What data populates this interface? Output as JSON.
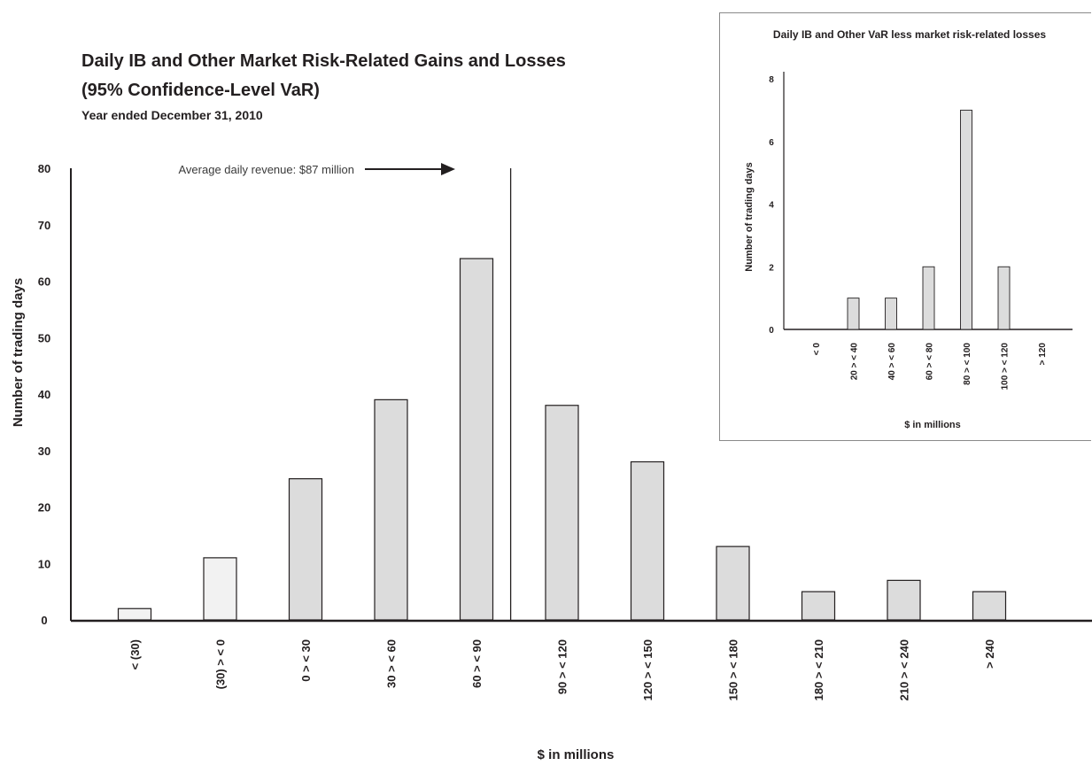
{
  "chart_data": [
    {
      "type": "bar",
      "title": "Daily IB and Other Market Risk-Related Gains and Losses",
      "subtitle": "(95% Confidence-Level VaR)",
      "period": "Year ended December 31, 2010",
      "xlabel": "$ in millions",
      "ylabel": "Number of trading days",
      "ylim": [
        0,
        80
      ],
      "y_ticks": [
        "0",
        "10",
        "20",
        "30",
        "40",
        "50",
        "60",
        "70",
        "80"
      ],
      "categories": [
        "< (30)",
        "(30) > < 0",
        "0 > < 30",
        "30 > < 60",
        "60 > < 90",
        "90 > < 120",
        "120 > < 150",
        "150 > < 180",
        "180 > < 210",
        "210 > < 240",
        "> 240"
      ],
      "values": [
        2,
        11,
        25,
        39,
        64,
        38,
        28,
        13,
        5,
        7,
        5
      ],
      "colors": {
        "loss_bar": "#f2f2f2",
        "gain_bar": "#dcdcdc",
        "outline": "#231f20"
      },
      "annotation": {
        "text": "Average daily revenue: $87 million",
        "x_value": 87
      }
    },
    {
      "type": "bar",
      "title": "Daily IB and Other VaR less market risk-related losses",
      "xlabel": "$ in millions",
      "ylabel": "Number of trading days",
      "ylim": [
        0,
        8
      ],
      "y_ticks": [
        "0",
        "2",
        "4",
        "6",
        "8"
      ],
      "categories": [
        "< 0",
        "20 > < 40",
        "40 > < 60",
        "60 > < 80",
        "80 > < 100",
        "100 > < 120",
        "> 120"
      ],
      "values": [
        0,
        1,
        1,
        2,
        7,
        2,
        0
      ],
      "colors": {
        "bar": "#dcdcdc",
        "outline": "#231f20"
      }
    }
  ]
}
